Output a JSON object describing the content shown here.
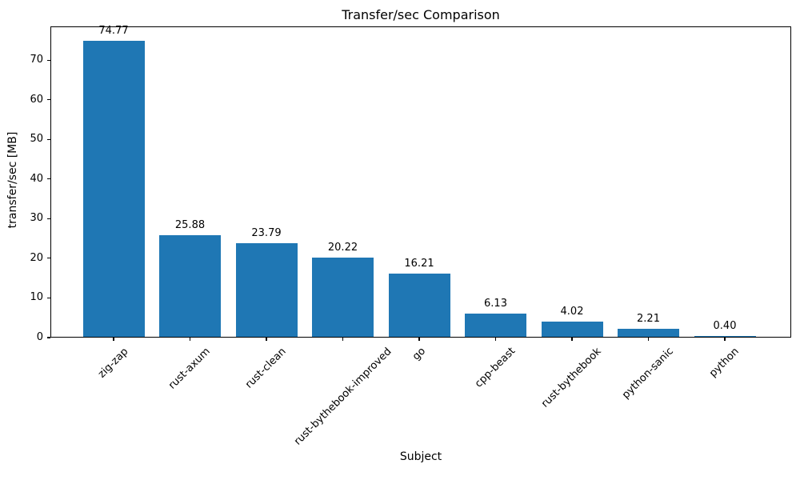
{
  "chart_data": {
    "type": "bar",
    "title": "Transfer/sec Comparison",
    "xlabel": "Subject",
    "ylabel": "transfer/sec [MB]",
    "categories": [
      "zig-zap",
      "rust-axum",
      "rust-clean",
      "rust-bythebook-improved",
      "go",
      "cpp-beast",
      "rust-bythebook",
      "python-sanic",
      "python"
    ],
    "values": [
      74.77,
      25.88,
      23.79,
      20.22,
      16.21,
      6.13,
      4.02,
      2.21,
      0.4
    ],
    "value_labels": [
      "74.77",
      "25.88",
      "23.79",
      "20.22",
      "16.21",
      "6.13",
      "4.02",
      "2.21",
      "0.40"
    ],
    "yticks": [
      0,
      10,
      20,
      30,
      40,
      50,
      60,
      70
    ],
    "ylim": [
      0,
      78.5
    ],
    "bar_color": "#1f77b4",
    "text_color": "#000000",
    "grid": false,
    "legend": "none",
    "x_tick_rotation_deg": 45
  }
}
